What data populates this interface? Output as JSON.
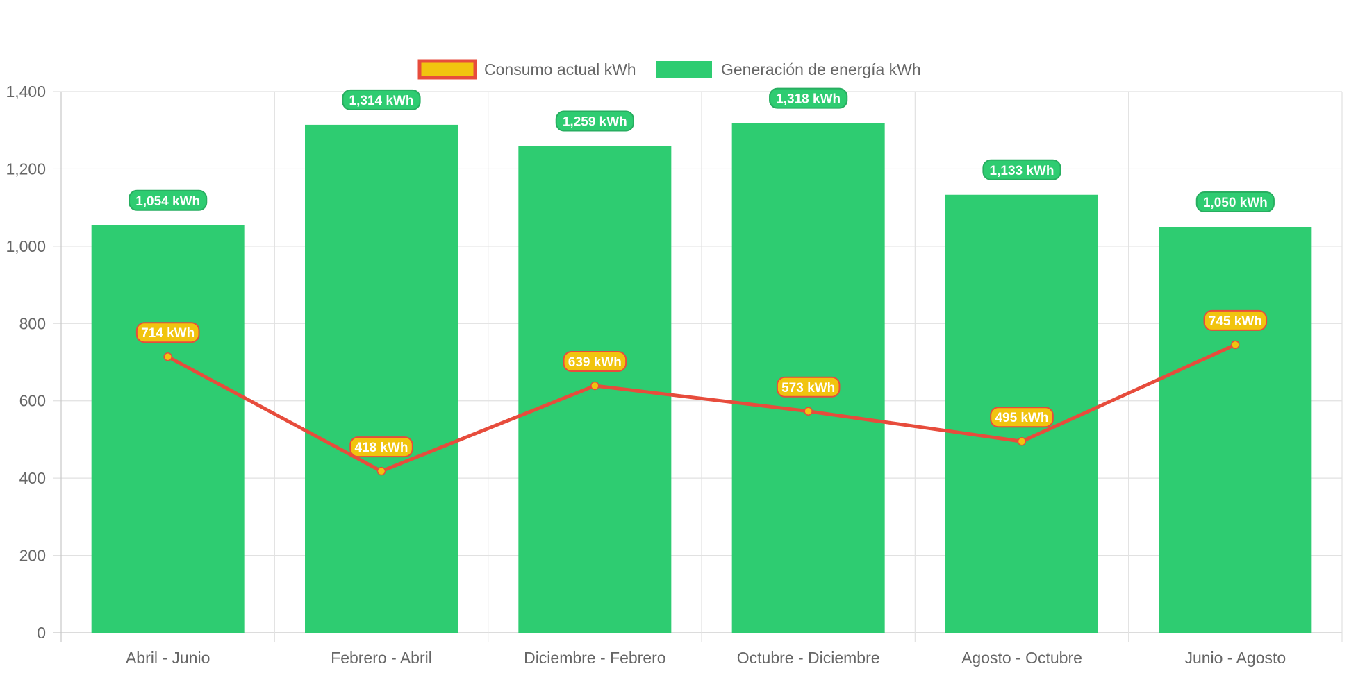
{
  "chart_data": {
    "type": "bar",
    "categories": [
      "Abril - Junio",
      "Febrero - Abril",
      "Diciembre - Febrero",
      "Octubre - Diciembre",
      "Agosto - Octubre",
      "Junio - Agosto"
    ],
    "series": [
      {
        "name": "Consumo actual kWh",
        "type": "line",
        "values": [
          714,
          418,
          639,
          573,
          495,
          745
        ],
        "labels": [
          "714 kWh",
          "418 kWh",
          "639 kWh",
          "573 kWh",
          "495 kWh",
          "745 kWh"
        ],
        "color": "#e74c3c",
        "fill": "#f1c40f"
      },
      {
        "name": "Generación de energía kWh",
        "type": "bar",
        "values": [
          1054,
          1314,
          1259,
          1318,
          1133,
          1050
        ],
        "labels": [
          "1,054 kWh",
          "1,314 kWh",
          "1,259 kWh",
          "1,318 kWh",
          "1,133 kWh",
          "1,050 kWh"
        ],
        "color": "#2ecc71",
        "border": "#27ae60"
      }
    ],
    "ylim": [
      0,
      1400
    ],
    "yticks": [
      0,
      200,
      400,
      600,
      800,
      1000,
      1200,
      1400
    ],
    "ytick_labels": [
      "0",
      "200",
      "400",
      "600",
      "800",
      "1,000",
      "1,200",
      "1,400"
    ],
    "grid": true,
    "legend_position": "top"
  }
}
